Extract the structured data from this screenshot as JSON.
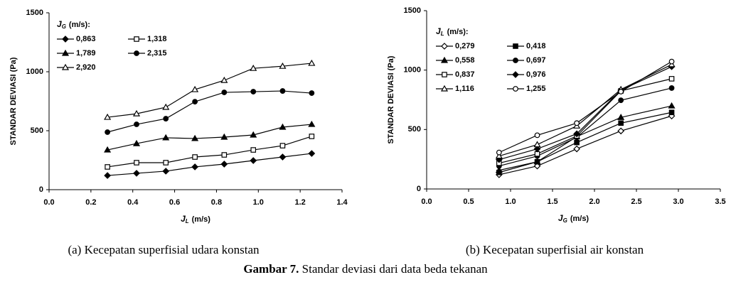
{
  "chart_data": [
    {
      "type": "line",
      "caption": "(a) Kecepatan superfisial udara konstan",
      "xlabel": {
        "symbol": "J",
        "subscript": "L",
        "unit": "(m/s)"
      },
      "ylabel": "STANDAR DEVIASI (Pa)",
      "legend_title": {
        "symbol": "J",
        "subscript": "G",
        "unit": "(m/s):"
      },
      "x": [
        0.279,
        0.418,
        0.558,
        0.697,
        0.837,
        0.976,
        1.116,
        1.255
      ],
      "xlim": [
        0,
        1.4
      ],
      "xticks": [
        {
          "value": 0,
          "label": "0.0"
        },
        0.2,
        0.4,
        0.6,
        0.8,
        {
          "value": 1,
          "label": "1.0"
        },
        1.2,
        1.4
      ],
      "ylim": [
        0,
        1500
      ],
      "yticks": [
        0,
        500,
        1000,
        1500
      ],
      "series": [
        {
          "name": "0,863",
          "color": "#000000",
          "marker": "diamond-filled",
          "values": [
            120,
            139,
            157,
            193,
            217,
            247,
            277,
            307
          ]
        },
        {
          "name": "1,318",
          "color": "#000000",
          "marker": "square-open",
          "values": [
            193,
            229,
            229,
            277,
            295,
            337,
            373,
            452
          ]
        },
        {
          "name": "1,789",
          "color": "#000000",
          "marker": "triangle-filled",
          "values": [
            337,
            391,
            440,
            434,
            446,
            464,
            530,
            554
          ]
        },
        {
          "name": "2,315",
          "color": "#000000",
          "marker": "circle-filled",
          "values": [
            488,
            554,
            602,
            746,
            825,
            831,
            837,
            819
          ]
        },
        {
          "name": "2,920",
          "color": "#000000",
          "marker": "triangle-open",
          "values": [
            614,
            644,
            699,
            849,
            927,
            1029,
            1047,
            1072
          ]
        }
      ]
    },
    {
      "type": "line",
      "caption": "(b) Kecepatan superfisial air konstan",
      "xlabel": {
        "symbol": "J",
        "subscript": "G",
        "unit": "(m/s)"
      },
      "ylabel": "STANDAR DEVIASI (Pa)",
      "legend_title": {
        "symbol": "J",
        "subscript": "L",
        "unit": "(m/s):"
      },
      "x": [
        0.863,
        1.318,
        1.789,
        2.315,
        2.92
      ],
      "xlim": [
        0,
        3.5
      ],
      "xticks": [
        {
          "value": 0,
          "label": "0.0"
        },
        0.5,
        {
          "value": 1,
          "label": "1.0"
        },
        1.5,
        {
          "value": 2,
          "label": "2.0"
        },
        2.5,
        {
          "value": 3,
          "label": "3.0"
        },
        3.5
      ],
      "ylim": [
        0,
        1500
      ],
      "yticks": [
        0,
        500,
        1000,
        1500
      ],
      "series": [
        {
          "name": "0,279",
          "color": "#000000",
          "marker": "diamond-open",
          "values": [
            120,
            193,
            337,
            488,
            614
          ]
        },
        {
          "name": "0,418",
          "color": "#000000",
          "marker": "square-filled",
          "values": [
            139,
            229,
            391,
            554,
            644
          ]
        },
        {
          "name": "0,558",
          "color": "#000000",
          "marker": "triangle-filled",
          "values": [
            157,
            229,
            440,
            602,
            699
          ]
        },
        {
          "name": "0,697",
          "color": "#000000",
          "marker": "circle-filled",
          "values": [
            193,
            277,
            434,
            746,
            849
          ]
        },
        {
          "name": "0,837",
          "color": "#000000",
          "marker": "square-open",
          "values": [
            217,
            295,
            446,
            825,
            927
          ]
        },
        {
          "name": "0,976",
          "color": "#000000",
          "marker": "diamond-filled",
          "values": [
            247,
            337,
            464,
            831,
            1029
          ]
        },
        {
          "name": "1,116",
          "color": "#000000",
          "marker": "triangle-open",
          "values": [
            277,
            373,
            530,
            837,
            1047
          ]
        },
        {
          "name": "1,255",
          "color": "#000000",
          "marker": "circle-open",
          "values": [
            307,
            452,
            554,
            819,
            1072
          ]
        }
      ]
    }
  ],
  "figure_caption": {
    "label": "Gambar 7.",
    "text": "Standar deviasi dari data beda tekanan"
  }
}
